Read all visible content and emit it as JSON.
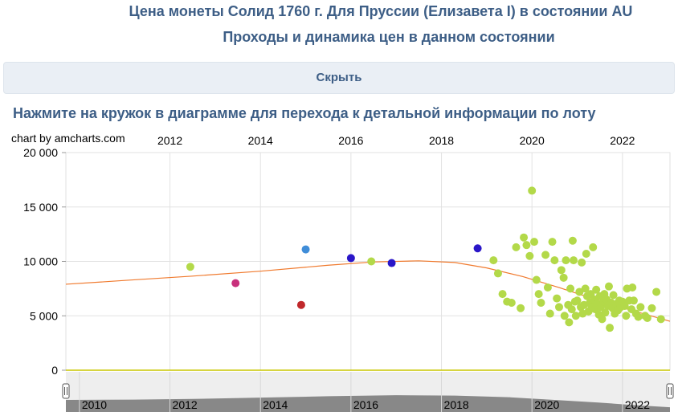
{
  "header": {
    "title": "Цена монеты Солид 1760 г. Для Пруссии (Елизавета I) в состоянии AU",
    "subtitle": "Проходы и динамика цен в данном состоянии",
    "hide_button": "Скрыть",
    "click_hint": "Нажмите на кружок в диаграмме для перехода к детальной информации по лоту",
    "credit": "chart by amcharts.com"
  },
  "colors": {
    "trend": "#f07a2e",
    "grid": "#e2e2e2",
    "zero_line": "#c9c600",
    "scrollbar_bg": "#eeeeee",
    "scrollbar_fill": "#888888"
  },
  "chart_data": {
    "type": "scatter",
    "x_axis": "date",
    "xlim": [
      2009.7,
      2023.05
    ],
    "ylim": [
      0,
      20000
    ],
    "x_ticks": [
      "2012",
      "2014",
      "2016",
      "2018",
      "2020",
      "2022"
    ],
    "x_ticks_bottom": [
      "2010",
      "2012",
      "2014",
      "2016",
      "2018",
      "2020",
      "2022"
    ],
    "y_ticks": [
      "0",
      "5 000",
      "10 000",
      "15 000",
      "20 000"
    ],
    "grid": true,
    "points": [
      {
        "x": 2012.45,
        "y": 9500,
        "color": "#b3d949"
      },
      {
        "x": 2013.45,
        "y": 8000,
        "color": "#c8307c"
      },
      {
        "x": 2014.9,
        "y": 6000,
        "color": "#c0282b"
      },
      {
        "x": 2015.0,
        "y": 11100,
        "color": "#3f8dd8"
      },
      {
        "x": 2016.0,
        "y": 10300,
        "color": "#2a16c8"
      },
      {
        "x": 2016.45,
        "y": 10000,
        "color": "#b3d949"
      },
      {
        "x": 2016.9,
        "y": 9850,
        "color": "#2a16c8"
      },
      {
        "x": 2018.8,
        "y": 11200,
        "color": "#2a16c8"
      },
      {
        "x": 2019.15,
        "y": 10100,
        "color": "#b3d949"
      },
      {
        "x": 2019.25,
        "y": 8900,
        "color": "#b3d949"
      },
      {
        "x": 2019.35,
        "y": 7000,
        "color": "#b3d949"
      },
      {
        "x": 2019.45,
        "y": 6300,
        "color": "#b3d949"
      },
      {
        "x": 2019.55,
        "y": 6200,
        "color": "#b3d949"
      },
      {
        "x": 2019.65,
        "y": 11300,
        "color": "#b3d949"
      },
      {
        "x": 2019.75,
        "y": 5700,
        "color": "#b3d949"
      },
      {
        "x": 2019.82,
        "y": 12200,
        "color": "#b3d949"
      },
      {
        "x": 2019.88,
        "y": 11500,
        "color": "#b3d949"
      },
      {
        "x": 2019.95,
        "y": 10500,
        "color": "#b3d949"
      },
      {
        "x": 2020.0,
        "y": 16500,
        "color": "#b3d949"
      },
      {
        "x": 2020.05,
        "y": 11800,
        "color": "#b3d949"
      },
      {
        "x": 2020.1,
        "y": 8300,
        "color": "#b3d949"
      },
      {
        "x": 2020.15,
        "y": 7000,
        "color": "#b3d949"
      },
      {
        "x": 2020.2,
        "y": 6200,
        "color": "#b3d949"
      },
      {
        "x": 2020.3,
        "y": 10600,
        "color": "#b3d949"
      },
      {
        "x": 2020.35,
        "y": 7600,
        "color": "#b3d949"
      },
      {
        "x": 2020.4,
        "y": 5200,
        "color": "#b3d949"
      },
      {
        "x": 2020.45,
        "y": 11800,
        "color": "#b3d949"
      },
      {
        "x": 2020.5,
        "y": 10100,
        "color": "#b3d949"
      },
      {
        "x": 2020.55,
        "y": 6600,
        "color": "#b3d949"
      },
      {
        "x": 2020.6,
        "y": 5800,
        "color": "#b3d949"
      },
      {
        "x": 2020.65,
        "y": 9200,
        "color": "#b3d949"
      },
      {
        "x": 2020.7,
        "y": 8500,
        "color": "#b3d949"
      },
      {
        "x": 2020.72,
        "y": 5000,
        "color": "#b3d949"
      },
      {
        "x": 2020.75,
        "y": 10100,
        "color": "#b3d949"
      },
      {
        "x": 2020.8,
        "y": 6000,
        "color": "#b3d949"
      },
      {
        "x": 2020.82,
        "y": 4400,
        "color": "#b3d949"
      },
      {
        "x": 2020.85,
        "y": 7500,
        "color": "#b3d949"
      },
      {
        "x": 2020.88,
        "y": 5600,
        "color": "#b3d949"
      },
      {
        "x": 2020.9,
        "y": 11900,
        "color": "#b3d949"
      },
      {
        "x": 2020.92,
        "y": 10100,
        "color": "#b3d949"
      },
      {
        "x": 2020.95,
        "y": 6300,
        "color": "#b3d949"
      },
      {
        "x": 2020.97,
        "y": 5000,
        "color": "#b3d949"
      },
      {
        "x": 2021.0,
        "y": 6400,
        "color": "#b3d949"
      },
      {
        "x": 2021.05,
        "y": 7200,
        "color": "#b3d949"
      },
      {
        "x": 2021.08,
        "y": 5800,
        "color": "#b3d949"
      },
      {
        "x": 2021.1,
        "y": 9900,
        "color": "#b3d949"
      },
      {
        "x": 2021.12,
        "y": 5200,
        "color": "#b3d949"
      },
      {
        "x": 2021.15,
        "y": 6000,
        "color": "#b3d949"
      },
      {
        "x": 2021.18,
        "y": 7500,
        "color": "#b3d949"
      },
      {
        "x": 2021.2,
        "y": 10700,
        "color": "#b3d949"
      },
      {
        "x": 2021.22,
        "y": 6800,
        "color": "#b3d949"
      },
      {
        "x": 2021.25,
        "y": 5400,
        "color": "#b3d949"
      },
      {
        "x": 2021.28,
        "y": 6200,
        "color": "#b3d949"
      },
      {
        "x": 2021.3,
        "y": 7000,
        "color": "#b3d949"
      },
      {
        "x": 2021.32,
        "y": 5800,
        "color": "#b3d949"
      },
      {
        "x": 2021.35,
        "y": 11300,
        "color": "#b3d949"
      },
      {
        "x": 2021.38,
        "y": 6500,
        "color": "#b3d949"
      },
      {
        "x": 2021.4,
        "y": 5600,
        "color": "#b3d949"
      },
      {
        "x": 2021.42,
        "y": 7400,
        "color": "#b3d949"
      },
      {
        "x": 2021.45,
        "y": 6100,
        "color": "#b3d949"
      },
      {
        "x": 2021.48,
        "y": 5100,
        "color": "#b3d949"
      },
      {
        "x": 2021.5,
        "y": 6800,
        "color": "#b3d949"
      },
      {
        "x": 2021.52,
        "y": 5800,
        "color": "#b3d949"
      },
      {
        "x": 2021.55,
        "y": 4700,
        "color": "#b3d949"
      },
      {
        "x": 2021.58,
        "y": 6300,
        "color": "#b3d949"
      },
      {
        "x": 2021.6,
        "y": 7000,
        "color": "#b3d949"
      },
      {
        "x": 2021.62,
        "y": 5300,
        "color": "#b3d949"
      },
      {
        "x": 2021.65,
        "y": 6500,
        "color": "#b3d949"
      },
      {
        "x": 2021.68,
        "y": 5900,
        "color": "#b3d949"
      },
      {
        "x": 2021.7,
        "y": 7700,
        "color": "#b3d949"
      },
      {
        "x": 2021.72,
        "y": 3900,
        "color": "#b3d949"
      },
      {
        "x": 2021.75,
        "y": 6200,
        "color": "#b3d949"
      },
      {
        "x": 2021.78,
        "y": 5700,
        "color": "#b3d949"
      },
      {
        "x": 2021.8,
        "y": 6900,
        "color": "#b3d949"
      },
      {
        "x": 2021.83,
        "y": 5200,
        "color": "#b3d949"
      },
      {
        "x": 2021.86,
        "y": 6100,
        "color": "#b3d949"
      },
      {
        "x": 2021.9,
        "y": 5500,
        "color": "#b3d949"
      },
      {
        "x": 2021.93,
        "y": 6400,
        "color": "#b3d949"
      },
      {
        "x": 2021.96,
        "y": 5800,
        "color": "#b3d949"
      },
      {
        "x": 2022.0,
        "y": 6300,
        "color": "#b3d949"
      },
      {
        "x": 2022.05,
        "y": 5900,
        "color": "#b3d949"
      },
      {
        "x": 2022.08,
        "y": 5000,
        "color": "#b3d949"
      },
      {
        "x": 2022.1,
        "y": 7500,
        "color": "#b3d949"
      },
      {
        "x": 2022.15,
        "y": 6400,
        "color": "#b3d949"
      },
      {
        "x": 2022.2,
        "y": 5600,
        "color": "#b3d949"
      },
      {
        "x": 2022.22,
        "y": 7600,
        "color": "#b3d949"
      },
      {
        "x": 2022.25,
        "y": 6400,
        "color": "#b3d949"
      },
      {
        "x": 2022.3,
        "y": 5200,
        "color": "#b3d949"
      },
      {
        "x": 2022.35,
        "y": 4900,
        "color": "#b3d949"
      },
      {
        "x": 2022.4,
        "y": 5800,
        "color": "#b3d949"
      },
      {
        "x": 2022.5,
        "y": 5000,
        "color": "#b3d949"
      },
      {
        "x": 2022.55,
        "y": 4800,
        "color": "#b3d949"
      },
      {
        "x": 2022.65,
        "y": 5700,
        "color": "#b3d949"
      },
      {
        "x": 2022.75,
        "y": 7200,
        "color": "#b3d949"
      },
      {
        "x": 2022.85,
        "y": 4700,
        "color": "#b3d949"
      }
    ],
    "trend": [
      {
        "x": 2009.7,
        "y": 7900
      },
      {
        "x": 2011.0,
        "y": 8250
      },
      {
        "x": 2012.5,
        "y": 8650
      },
      {
        "x": 2014.0,
        "y": 9100
      },
      {
        "x": 2015.5,
        "y": 9650
      },
      {
        "x": 2016.5,
        "y": 9950
      },
      {
        "x": 2017.5,
        "y": 10050
      },
      {
        "x": 2018.3,
        "y": 9900
      },
      {
        "x": 2019.0,
        "y": 9400
      },
      {
        "x": 2019.8,
        "y": 8600
      },
      {
        "x": 2020.6,
        "y": 7600
      },
      {
        "x": 2021.4,
        "y": 6500
      },
      {
        "x": 2022.2,
        "y": 5500
      },
      {
        "x": 2023.05,
        "y": 4500
      }
    ],
    "scrollbar_profile": [
      {
        "x": 2009.7,
        "y": 1800
      },
      {
        "x": 2011.2,
        "y": 1850
      },
      {
        "x": 2012.5,
        "y": 1950
      },
      {
        "x": 2014.0,
        "y": 2150
      },
      {
        "x": 2015.5,
        "y": 2350
      },
      {
        "x": 2017.0,
        "y": 2500
      },
      {
        "x": 2018.3,
        "y": 2450
      },
      {
        "x": 2019.5,
        "y": 2200
      },
      {
        "x": 2020.5,
        "y": 1800
      },
      {
        "x": 2021.5,
        "y": 1400
      },
      {
        "x": 2022.3,
        "y": 1000
      },
      {
        "x": 2023.05,
        "y": 700
      }
    ]
  }
}
